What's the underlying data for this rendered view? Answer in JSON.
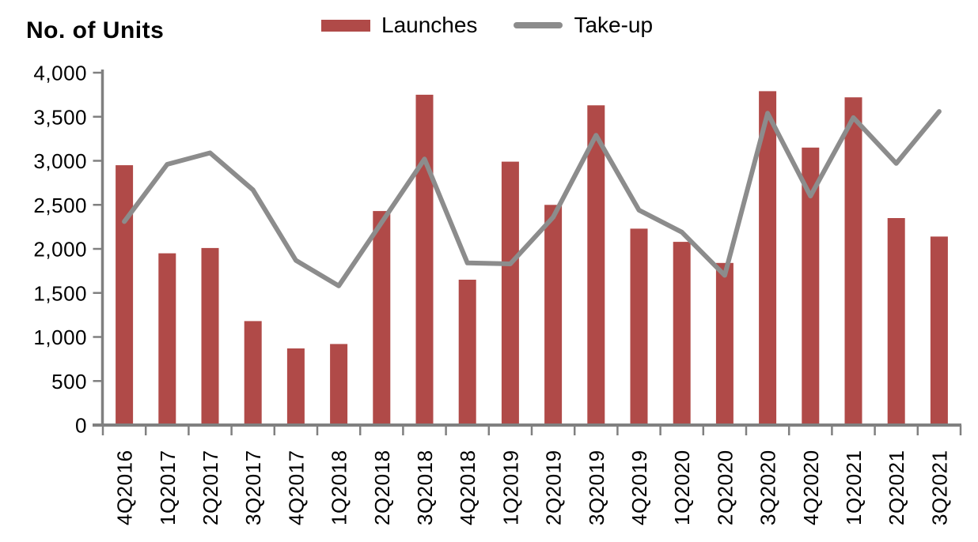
{
  "page": {
    "background": "#FFFFFF"
  },
  "chart_data": {
    "type": "bar+line",
    "title": "No. of Units",
    "categories": [
      "4Q2016",
      "1Q2017",
      "2Q2017",
      "3Q2017",
      "4Q2017",
      "1Q2018",
      "2Q2018",
      "3Q2018",
      "4Q2018",
      "1Q2019",
      "2Q2019",
      "3Q2019",
      "4Q2019",
      "1Q2020",
      "2Q2020",
      "3Q2020",
      "4Q2020",
      "1Q2021",
      "2Q2021",
      "3Q2021"
    ],
    "series": [
      {
        "name": "Launches",
        "type": "bar",
        "color": "#B04A48",
        "values": [
          2950,
          1950,
          2010,
          1180,
          870,
          920,
          2430,
          3750,
          1650,
          2990,
          2500,
          3630,
          2230,
          2080,
          1840,
          3790,
          3150,
          3720,
          2350,
          2140
        ]
      },
      {
        "name": "Take-up",
        "type": "line",
        "color": "#8C8C8C",
        "values": [
          2310,
          2960,
          3090,
          2670,
          1870,
          1580,
          2300,
          3020,
          1840,
          1830,
          2360,
          3290,
          2440,
          2190,
          1700,
          3540,
          2600,
          3490,
          2970,
          3560
        ]
      }
    ],
    "y_axis": {
      "min": 0,
      "max": 4000,
      "tick_step": 500,
      "tick_labels": [
        "0",
        "500",
        "1,000",
        "1,500",
        "2,000",
        "2,500",
        "3,000",
        "3,500",
        "4,000"
      ]
    },
    "x_axis": {
      "label_rotation": -90
    },
    "legend": {
      "position": "top"
    },
    "grid": false,
    "axis_color": "#808080",
    "text_color": "#000000"
  }
}
